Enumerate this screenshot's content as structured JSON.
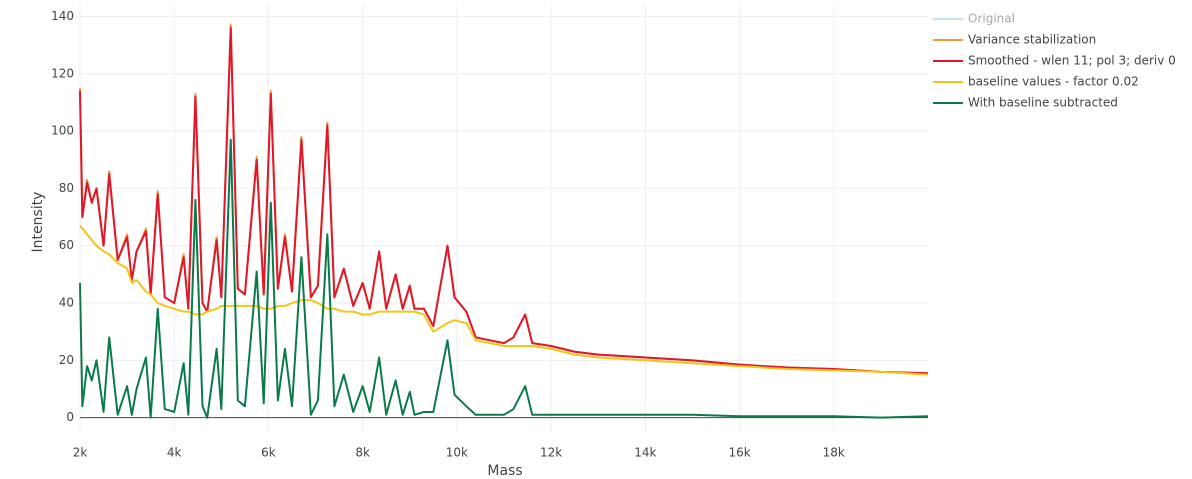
{
  "chart_data": {
    "type": "line",
    "xlabel": "Mass",
    "ylabel": "Intensity",
    "x": [
      2000,
      2050,
      2150,
      2250,
      2350,
      2500,
      2620,
      2800,
      3000,
      3100,
      3200,
      3400,
      3500,
      3650,
      3800,
      4000,
      4200,
      4300,
      4450,
      4600,
      4700,
      4900,
      5000,
      5200,
      5350,
      5500,
      5750,
      5900,
      6050,
      6200,
      6350,
      6500,
      6700,
      6900,
      7050,
      7250,
      7400,
      7600,
      7800,
      8000,
      8150,
      8350,
      8500,
      8700,
      8850,
      9000,
      9100,
      9300,
      9500,
      9800,
      9950,
      10200,
      10400,
      10700,
      11000,
      11200,
      11450,
      11600,
      12000,
      12500,
      13000,
      14000,
      15000,
      16000,
      17000,
      18000,
      19000,
      20000
    ],
    "series": [
      {
        "name": "Original",
        "color": "#8dc3e6",
        "visible": "legendonly"
      },
      {
        "name": "Variance stabilization",
        "color": "#f5983a",
        "values": [
          115,
          70,
          83,
          75,
          80,
          60,
          86,
          55,
          64,
          48,
          58,
          66,
          43,
          79,
          42,
          40,
          57,
          38,
          113,
          40,
          37,
          63,
          42,
          137,
          45,
          43,
          91,
          43,
          114,
          45,
          64,
          44,
          98,
          42,
          46,
          103,
          42,
          52,
          39,
          47,
          38,
          58,
          38,
          50,
          38,
          46,
          38,
          38,
          32,
          60,
          42,
          37,
          28,
          27,
          26,
          28,
          36,
          26,
          25,
          23,
          22,
          21,
          20,
          18.5,
          17.5,
          17,
          16,
          15.5
        ]
      },
      {
        "name": "Smoothed - wlen 11; pol 3; deriv 0",
        "color": "#e0182d",
        "values": [
          114,
          70,
          82,
          75,
          80,
          60,
          85,
          55,
          63,
          48,
          58,
          65,
          43,
          78,
          42,
          40,
          56,
          38,
          112,
          40,
          37,
          62,
          42,
          136,
          45,
          43,
          90,
          43,
          113,
          45,
          63,
          44,
          97,
          42,
          46,
          102,
          42,
          52,
          39,
          47,
          38,
          58,
          38,
          50,
          38,
          46,
          38,
          38,
          32,
          60,
          42,
          37,
          28,
          27,
          26,
          28,
          36,
          26,
          25,
          23,
          22,
          21,
          20,
          18.5,
          17.5,
          17,
          16,
          15.5
        ]
      },
      {
        "name": "baseline values - factor 0.02",
        "color": "#f5c518",
        "values": [
          67,
          66,
          64,
          62,
          60,
          58,
          57,
          54,
          52,
          47,
          48,
          44,
          43,
          40,
          39,
          38,
          37,
          37,
          36,
          36,
          37,
          38,
          39,
          39,
          39,
          39,
          39,
          38,
          38,
          39,
          39,
          40,
          41,
          41,
          40,
          38,
          38,
          37,
          37,
          36,
          36,
          37,
          37,
          37,
          37,
          37,
          37,
          36,
          30,
          33,
          34,
          33,
          27,
          26,
          25,
          25,
          25,
          25,
          24,
          22,
          21,
          20,
          19,
          18,
          17,
          16.5,
          16,
          15
        ]
      },
      {
        "name": "With baseline subtracted",
        "color": "#0b7a4b",
        "values": [
          47,
          4,
          18,
          13,
          20,
          2,
          28,
          1,
          11,
          1,
          10,
          21,
          0,
          38,
          3,
          2,
          19,
          1,
          76,
          4,
          0,
          24,
          3,
          97,
          6,
          4,
          51,
          5,
          75,
          6,
          24,
          4,
          56,
          1,
          6,
          64,
          4,
          15,
          2,
          11,
          2,
          21,
          1,
          13,
          1,
          9,
          1,
          2,
          2,
          27,
          8,
          4,
          1,
          1,
          1,
          3,
          11,
          1,
          1,
          1,
          1,
          1,
          1,
          0.5,
          0.5,
          0.5,
          0,
          0.5
        ]
      }
    ],
    "xlim": [
      2000,
      20000
    ],
    "xticks": [
      {
        "value": 2000,
        "label": "2k"
      },
      {
        "value": 4000,
        "label": "4k"
      },
      {
        "value": 6000,
        "label": "6k"
      },
      {
        "value": 8000,
        "label": "8k"
      },
      {
        "value": 10000,
        "label": "10k"
      },
      {
        "value": 12000,
        "label": "12k"
      },
      {
        "value": 14000,
        "label": "14k"
      },
      {
        "value": 16000,
        "label": "16k"
      },
      {
        "value": 18000,
        "label": "18k"
      }
    ],
    "ylim": [
      -5,
      144
    ],
    "yticks": [
      0,
      20,
      40,
      60,
      80,
      100,
      120,
      140
    ],
    "grid": true
  }
}
